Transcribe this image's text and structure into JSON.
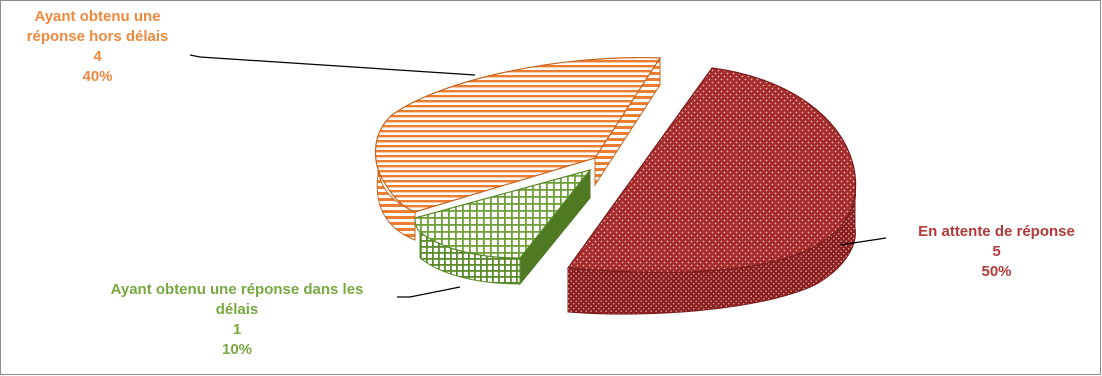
{
  "chart_data": {
    "type": "pie",
    "title": "",
    "slices": [
      {
        "label_lines": [
          "Ayant obtenu une",
          "réponse hors délais"
        ],
        "value": "4",
        "percent": "40%",
        "color": "#ED7D31"
      },
      {
        "label_lines": [
          "Ayant obtenu une réponse dans les",
          "délais"
        ],
        "value": "1",
        "percent": "10%",
        "color": "#70A03A"
      },
      {
        "label_lines": [
          "En attente de réponse"
        ],
        "value": "5",
        "percent": "50%",
        "color": "#A52A2A"
      }
    ],
    "style": "3d-exploded"
  }
}
